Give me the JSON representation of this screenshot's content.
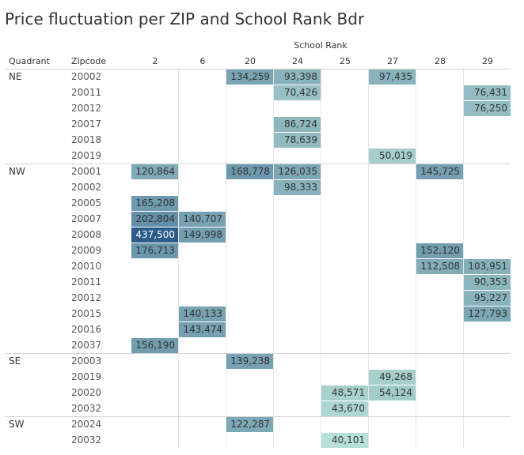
{
  "title": "Price fluctuation per ZIP and School Rank Bdr",
  "headers": {
    "col_group": "School Rank",
    "quadrant": "Quadrant",
    "zipcode": "Zipcode"
  },
  "color_scale": {
    "low": "#b9e0d6",
    "high": "#2b5c8a"
  },
  "chart_data": {
    "type": "heatmap",
    "title": "Price fluctuation per ZIP and School Rank Bdr",
    "column_title": "School Rank",
    "columns": [
      "2",
      "6",
      "20",
      "24",
      "25",
      "27",
      "28",
      "29"
    ],
    "groups": [
      {
        "quadrant": "NE",
        "rows": [
          {
            "zip": "20002",
            "values": {
              "20": "134,259",
              "24": "93,398",
              "27": "97,435"
            }
          },
          {
            "zip": "20011",
            "values": {
              "24": "70,426",
              "29": "76,431"
            }
          },
          {
            "zip": "20012",
            "values": {
              "29": "76,250"
            }
          },
          {
            "zip": "20017",
            "values": {
              "24": "86,724"
            }
          },
          {
            "zip": "20018",
            "values": {
              "24": "78,639"
            }
          },
          {
            "zip": "20019",
            "values": {
              "27": "50,019"
            }
          }
        ]
      },
      {
        "quadrant": "NW",
        "rows": [
          {
            "zip": "20001",
            "values": {
              "2": "120,864",
              "20": "168,778",
              "24": "126,035",
              "28": "145,725"
            }
          },
          {
            "zip": "20002",
            "values": {
              "24": "98,333"
            }
          },
          {
            "zip": "20005",
            "values": {
              "2": "165,208"
            }
          },
          {
            "zip": "20007",
            "values": {
              "2": "202,804",
              "6": "140,707"
            }
          },
          {
            "zip": "20008",
            "values": {
              "2": "437,500",
              "6": "149,998"
            }
          },
          {
            "zip": "20009",
            "values": {
              "2": "176,713",
              "28": "152,120"
            }
          },
          {
            "zip": "20010",
            "values": {
              "28": "112,508",
              "29": "103,951"
            }
          },
          {
            "zip": "20011",
            "values": {
              "29": "90,353"
            }
          },
          {
            "zip": "20012",
            "values": {
              "29": "95,227"
            }
          },
          {
            "zip": "20015",
            "values": {
              "6": "140,133",
              "29": "127,793"
            }
          },
          {
            "zip": "20016",
            "values": {
              "6": "143,474"
            }
          },
          {
            "zip": "20037",
            "values": {
              "2": "156,190"
            }
          }
        ]
      },
      {
        "quadrant": "SE",
        "rows": [
          {
            "zip": "20003",
            "values": {
              "20": "139,238"
            }
          },
          {
            "zip": "20019",
            "values": {
              "27": "49,268"
            }
          },
          {
            "zip": "20020",
            "values": {
              "25": "48,571",
              "27": "54,124"
            }
          },
          {
            "zip": "20032",
            "values": {
              "25": "43,670"
            }
          }
        ]
      },
      {
        "quadrant": "SW",
        "rows": [
          {
            "zip": "20024",
            "values": {
              "20": "122,287"
            }
          },
          {
            "zip": "20032",
            "values": {
              "25": "40,101"
            }
          }
        ]
      }
    ]
  }
}
